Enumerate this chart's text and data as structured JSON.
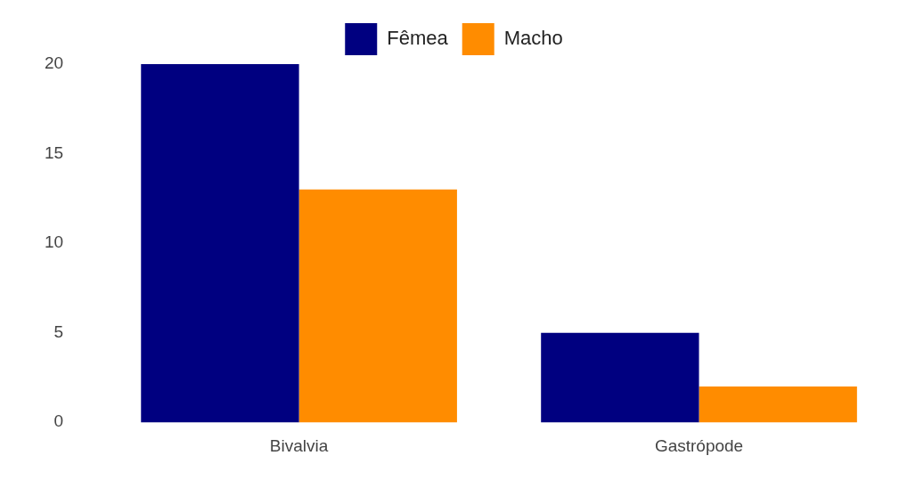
{
  "chart_data": {
    "type": "bar",
    "categories": [
      "Bivalvia",
      "Gastrópode"
    ],
    "series": [
      {
        "name": "Fêmea",
        "color": "#000080",
        "values": [
          20,
          5
        ]
      },
      {
        "name": "Macho",
        "color": "#ff8c00",
        "values": [
          13,
          2
        ]
      }
    ],
    "ylim": [
      0,
      20
    ],
    "yticks": [
      0,
      5,
      10,
      15,
      20
    ],
    "grid": false,
    "legend": "top"
  }
}
